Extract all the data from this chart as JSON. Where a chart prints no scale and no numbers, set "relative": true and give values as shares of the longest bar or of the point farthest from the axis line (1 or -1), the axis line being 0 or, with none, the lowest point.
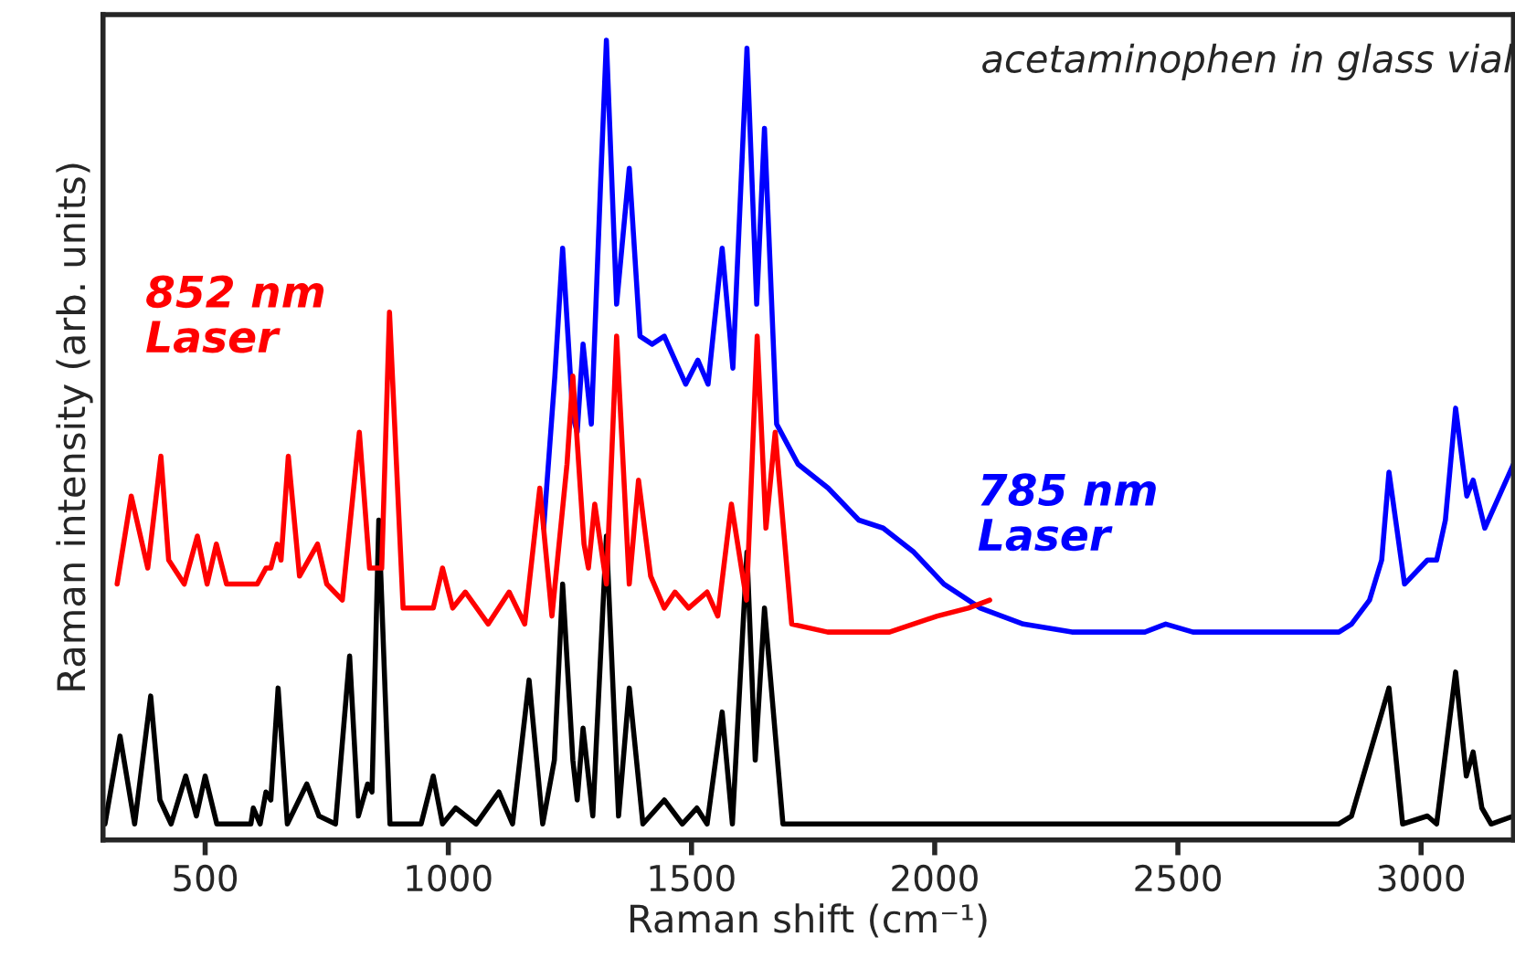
{
  "chart_data": {
    "type": "line",
    "title": "acetaminophen in glass vial",
    "xlabel": "Raman shift (cm⁻¹)",
    "ylabel": "Raman intensity (arb. units)",
    "relative": true,
    "tick_labels": "x",
    "xlim": [
      290,
      3190
    ],
    "xticks": [
      500,
      1000,
      1500,
      2000,
      2500,
      3000
    ],
    "series": [
      {
        "color": "#000000",
        "x": [
          294,
          325,
          355,
          388,
          407,
          430,
          460,
          482,
          500,
          524,
          594,
          599,
          613,
          625,
          635,
          650,
          669,
          709,
          734,
          768,
          797,
          815,
          834,
          843,
          857,
          880,
          944,
          969,
          988,
          1015,
          1057,
          1104,
          1132,
          1166,
          1194,
          1218,
          1235,
          1256,
          1265,
          1277,
          1297,
          1325,
          1350,
          1372,
          1400,
          1444,
          1481,
          1511,
          1532,
          1563,
          1584,
          1614,
          1631,
          1650,
          1688,
          2000,
          2200,
          2474,
          2600,
          2830,
          2857,
          2934,
          2962,
          3013,
          3032,
          3071,
          3093,
          3107,
          3125,
          3144,
          3190
        ],
        "values": [
          0.02,
          0.13,
          0.02,
          0.18,
          0.05,
          0.02,
          0.08,
          0.03,
          0.08,
          0.02,
          0.02,
          0.04,
          0.02,
          0.06,
          0.05,
          0.19,
          0.02,
          0.07,
          0.03,
          0.02,
          0.23,
          0.03,
          0.07,
          0.06,
          0.4,
          0.02,
          0.02,
          0.08,
          0.02,
          0.04,
          0.02,
          0.06,
          0.02,
          0.2,
          0.02,
          0.1,
          0.32,
          0.1,
          0.05,
          0.14,
          0.03,
          0.38,
          0.03,
          0.19,
          0.02,
          0.05,
          0.02,
          0.04,
          0.02,
          0.16,
          0.02,
          0.36,
          0.1,
          0.29,
          0.02,
          0.02,
          0.02,
          0.02,
          0.02,
          0.02,
          0.03,
          0.19,
          0.02,
          0.03,
          0.02,
          0.21,
          0.08,
          0.11,
          0.04,
          0.02,
          0.03
        ]
      },
      {
        "name": "785 nm\nLaser",
        "color": "#0000ff",
        "x": [
          1196,
          1219,
          1235,
          1256,
          1265,
          1277,
          1294,
          1313,
          1325,
          1346,
          1372,
          1394,
          1419,
          1444,
          1488,
          1513,
          1534,
          1563,
          1585,
          1614,
          1634,
          1650,
          1675,
          1719,
          1781,
          1844,
          1894,
          1957,
          2019,
          2094,
          2182,
          2282,
          2432,
          2475,
          2531,
          2719,
          2831,
          2857,
          2894,
          2919,
          2934,
          2966,
          3013,
          3032,
          3050,
          3071,
          3094,
          3107,
          3131,
          3190
        ],
        "values": [
          0.39,
          0.58,
          0.74,
          0.53,
          0.51,
          0.62,
          0.52,
          0.82,
          1.0,
          0.67,
          0.84,
          0.63,
          0.62,
          0.63,
          0.57,
          0.6,
          0.57,
          0.74,
          0.59,
          0.99,
          0.67,
          0.89,
          0.52,
          0.47,
          0.44,
          0.4,
          0.39,
          0.36,
          0.32,
          0.29,
          0.27,
          0.26,
          0.26,
          0.27,
          0.26,
          0.26,
          0.26,
          0.27,
          0.3,
          0.35,
          0.46,
          0.32,
          0.35,
          0.35,
          0.4,
          0.54,
          0.43,
          0.45,
          0.39,
          0.47
        ]
      },
      {
        "name": "852 nm\nLaser",
        "color": "#ff0000",
        "x": [
          319,
          348,
          382,
          409,
          425,
          457,
          484,
          504,
          523,
          544,
          607,
          625,
          635,
          648,
          656,
          671,
          694,
          731,
          750,
          782,
          817,
          838,
          863,
          879,
          907,
          969,
          988,
          1009,
          1035,
          1082,
          1125,
          1157,
          1188,
          1213,
          1244,
          1256,
          1279,
          1288,
          1301,
          1325,
          1346,
          1372,
          1391,
          1416,
          1444,
          1466,
          1494,
          1532,
          1554,
          1582,
          1613,
          1635,
          1653,
          1672,
          1706,
          1780,
          1907,
          2005,
          2069,
          2113
        ],
        "values": [
          0.32,
          0.43,
          0.34,
          0.48,
          0.35,
          0.32,
          0.38,
          0.32,
          0.37,
          0.32,
          0.32,
          0.34,
          0.34,
          0.37,
          0.35,
          0.48,
          0.33,
          0.37,
          0.32,
          0.3,
          0.51,
          0.34,
          0.34,
          0.66,
          0.29,
          0.29,
          0.34,
          0.29,
          0.31,
          0.27,
          0.31,
          0.27,
          0.44,
          0.28,
          0.47,
          0.58,
          0.37,
          0.34,
          0.42,
          0.32,
          0.63,
          0.32,
          0.45,
          0.33,
          0.29,
          0.31,
          0.29,
          0.31,
          0.28,
          0.42,
          0.3,
          0.63,
          0.39,
          0.51,
          0.27,
          0.26,
          0.26,
          0.28,
          0.29,
          0.3
        ]
      }
    ]
  }
}
